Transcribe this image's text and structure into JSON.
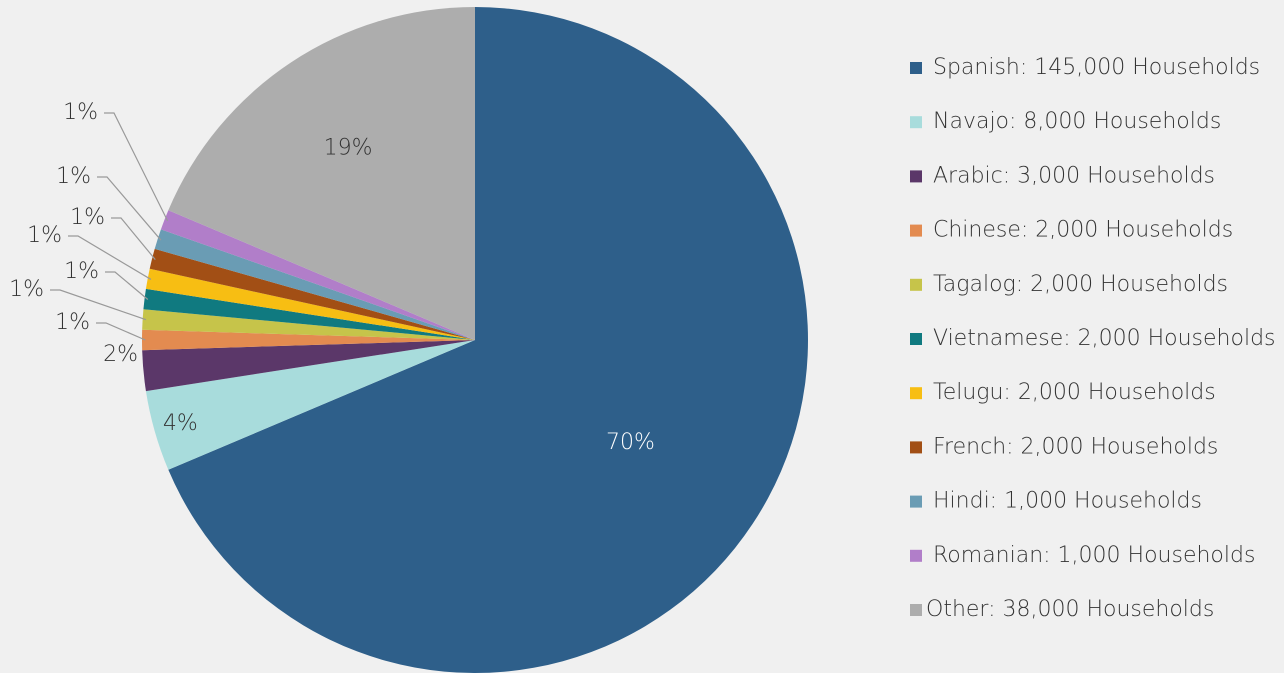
{
  "chart_data": {
    "type": "pie",
    "categories": [
      "Spanish: 145,000 Households",
      "Navajo: 8,000 Households",
      "Arabic: 3,000 Households",
      "Chinese: 2,000 Households",
      "Tagalog: 2,000 Households",
      "Vietnamese: 2,000 Households",
      "Telugu: 2,000 Households",
      "French: 2,000 Households",
      "Hindi: 1,000 Households",
      "Romanian: 1,000 Households",
      "Other: 38,000 Households"
    ],
    "values": [
      70,
      4,
      2,
      1,
      1,
      1,
      1,
      1,
      1,
      1,
      19
    ],
    "value_labels": [
      "70%",
      "4%",
      "2%",
      "1%",
      "1%",
      "1%",
      "1%",
      "1%",
      "1%",
      "1%",
      "19%"
    ],
    "colors": [
      "#2e5f8a",
      "#a8dcdc",
      "#5b3769",
      "#e38b50",
      "#c6c44a",
      "#107a80",
      "#f7be13",
      "#a24f15",
      "#6a9cb4",
      "#b17ec9",
      "#adadad"
    ],
    "legend": "right"
  }
}
